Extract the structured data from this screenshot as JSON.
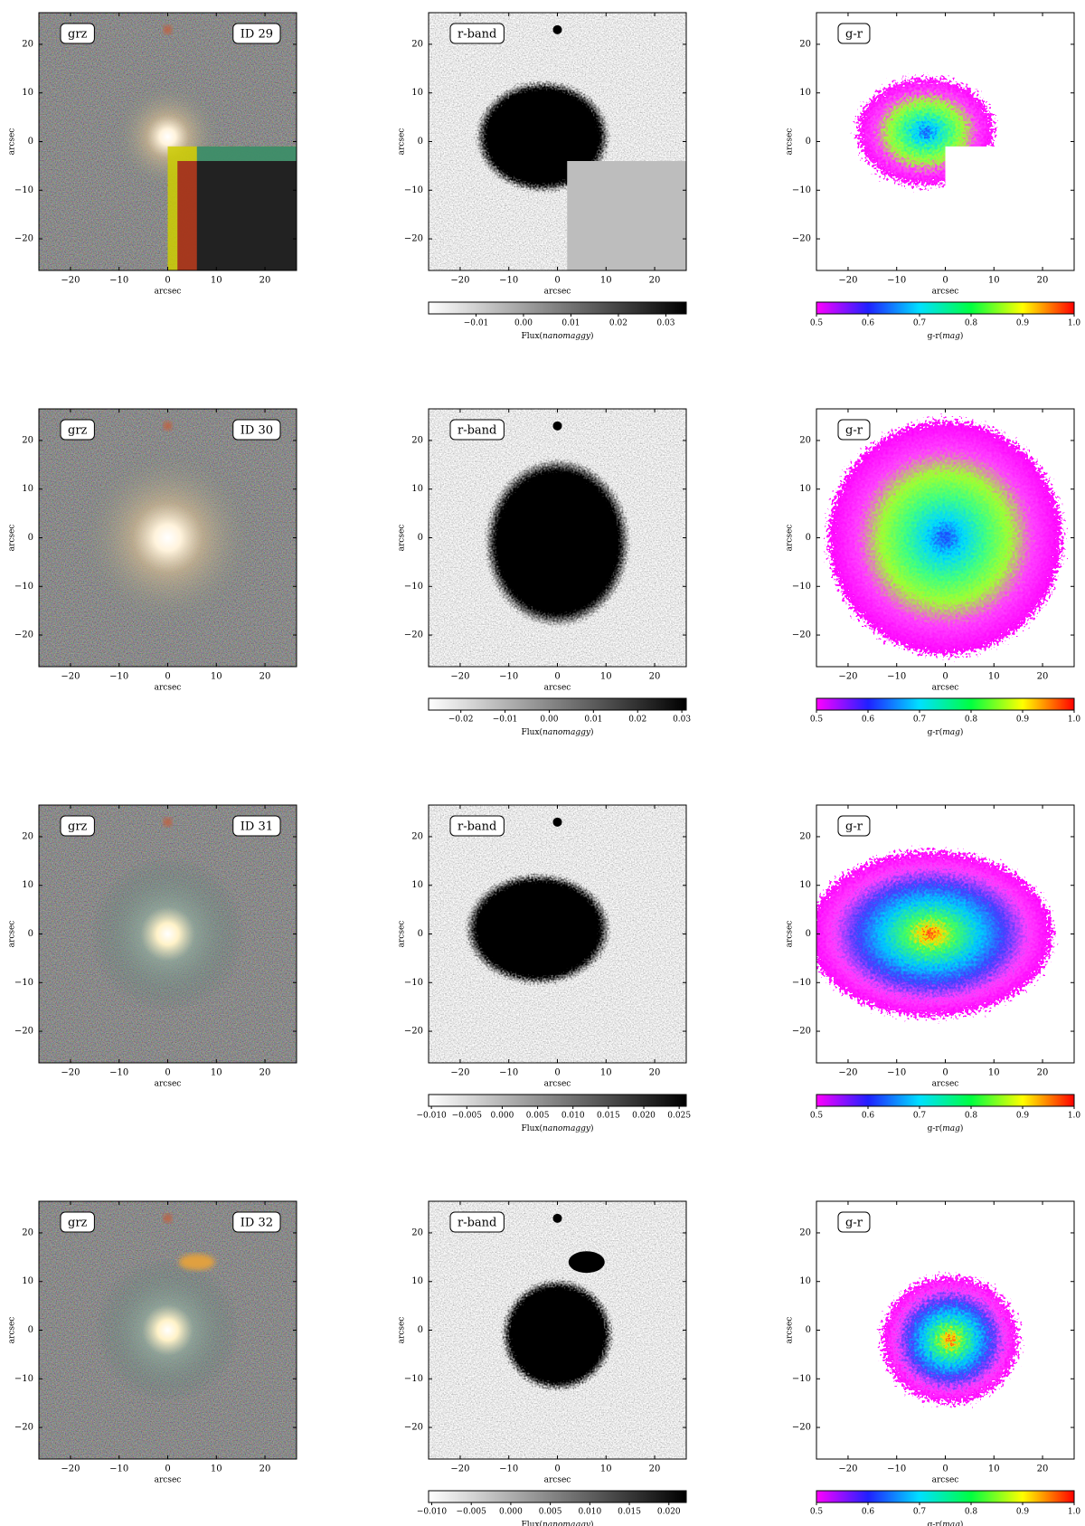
{
  "axes": {
    "xlim": [
      -26.5,
      26.5
    ],
    "ylim": [
      -26.5,
      26.5
    ],
    "xticks": [
      {
        "value": -20,
        "label": "−20"
      },
      {
        "value": -10,
        "label": "−10"
      },
      0,
      10,
      20
    ],
    "yticks": [
      20,
      10,
      0,
      {
        "value": -10,
        "label": "−10"
      },
      {
        "value": -20,
        "label": "−20"
      }
    ],
    "xlabel": "arcsec",
    "ylabel": "arcsec"
  },
  "badges": {
    "color": "grz",
    "band": "r-band",
    "colour_index": "g-r"
  },
  "gr_colorbar": {
    "clim": [
      0.5,
      1.0
    ],
    "ticks": [
      0.5,
      0.6,
      0.7,
      0.8,
      0.9,
      {
        "value": 1.0,
        "label": "1.0"
      }
    ],
    "label_parts": [
      "g-r(",
      "mag",
      ")"
    ]
  },
  "rows": [
    {
      "id": "ID 29",
      "rband_colorbar": {
        "clim": [
          -0.02,
          0.0343
        ],
        "ticks": [
          {
            "value": -0.01,
            "label": "−0.01"
          },
          {
            "value": 0,
            "label": "0.00"
          },
          0.01,
          0.02,
          0.03
        ],
        "label_parts": [
          "Flux(",
          "nanomaggy",
          ")"
        ]
      }
    },
    {
      "id": "ID 30",
      "rband_colorbar": {
        "clim": [
          -0.0273,
          0.031
        ],
        "ticks": [
          {
            "value": -0.02,
            "label": "−0.02"
          },
          {
            "value": -0.01,
            "label": "−0.01"
          },
          {
            "value": 0,
            "label": "0.00"
          },
          0.01,
          0.02,
          0.03
        ],
        "label_parts": [
          "Flux(",
          "nanomaggy",
          ")"
        ]
      }
    },
    {
      "id": "ID 31",
      "rband_colorbar": {
        "clim": [
          -0.0104,
          0.026
        ],
        "ticks": [
          {
            "value": -0.01,
            "label": "−0.010"
          },
          {
            "value": -0.005,
            "label": "−0.005"
          },
          {
            "value": 0,
            "label": "0.000"
          },
          0.005,
          {
            "value": 0.01,
            "label": "0.010"
          },
          0.015,
          {
            "value": 0.02,
            "label": "0.020"
          },
          0.025
        ],
        "label_parts": [
          "Flux(",
          "nanomaggy",
          ")"
        ]
      }
    },
    {
      "id": "ID 32",
      "rband_colorbar": {
        "clim": [
          -0.0104,
          0.0222
        ],
        "ticks": [
          {
            "value": -0.01,
            "label": "−0.010"
          },
          {
            "value": -0.005,
            "label": "−0.005"
          },
          {
            "value": 0,
            "label": "0.000"
          },
          0.005,
          {
            "value": 0.01,
            "label": "0.010"
          },
          0.015,
          {
            "value": 0.02,
            "label": "0.020"
          }
        ],
        "label_parts": [
          "Flux(",
          "nanomaggy",
          ")"
        ]
      }
    }
  ]
}
